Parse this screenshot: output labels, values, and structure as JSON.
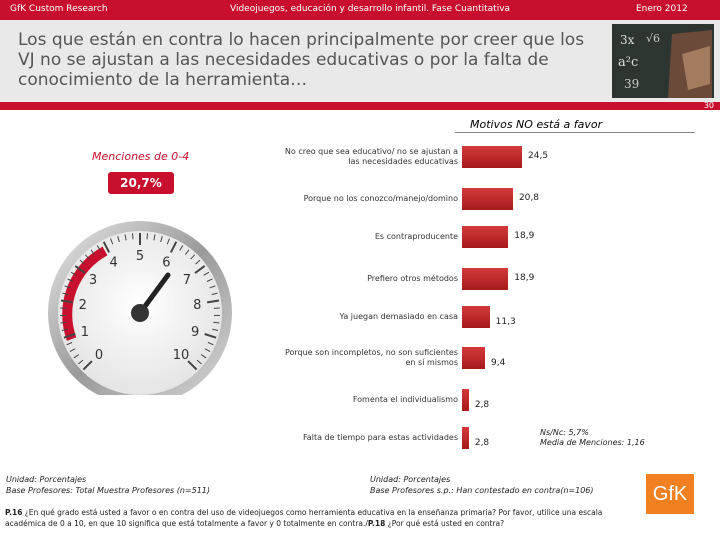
{
  "header": {
    "left": "GfK Custom Research",
    "center": "Videojuegos, educación y desarrollo infantil. Fase Cuantitativa",
    "right": "Enero 2012"
  },
  "title": "Los que están en contra lo hacen principalmente por creer que los VJ no se ajustan a las necesidades educativas o por la falta de conocimiento de la herramienta…",
  "page_number": "30",
  "gauge": {
    "label": "Menciones de 0-4",
    "value_text": "20,7%",
    "ticks": [
      "0",
      "1",
      "2",
      "3",
      "4",
      "5",
      "6",
      "7",
      "8",
      "9",
      "10"
    ]
  },
  "chart_data": {
    "type": "bar",
    "orientation": "horizontal",
    "title": "Motivos NO está a favor",
    "categories": [
      "No creo que sea educativo/ no se ajustan a las necesidades educativas",
      "Porque no los conozco/manejo/domino",
      "Es contraproducente",
      "Prefiero otros métodos",
      "Ya juegan demasiado en casa",
      "Porque son incompletos, no son suficientes en sí mismos",
      "Fomenta el individualismo",
      "Falta de tiempo para estas actividades"
    ],
    "values": [
      24.5,
      20.8,
      18.9,
      18.9,
      11.3,
      9.4,
      2.8,
      2.8
    ],
    "value_labels": [
      "24,5",
      "20,8",
      "18,9",
      "18,9",
      "11,3",
      "9,4",
      "2,8",
      "2,8"
    ],
    "xlim": [
      0,
      30
    ],
    "color": "#b52020"
  },
  "nsnc": [
    "Ns/Nc: 5,7%",
    "Media de Menciones: 1,16"
  ],
  "unidad_left": [
    "Unidad: Porcentajes",
    "Base Profesores: Total Muestra Profesores (n=511)"
  ],
  "unidad_right": [
    "Unidad: Porcentajes",
    "Base Profesores s.p.: Han contestado en contra(n=106)"
  ],
  "logo": "GfK",
  "footnote": {
    "p16_ref": "P.16",
    "p16_text": " ¿En qué grado está usted a favor o en contra del uso de videojuegos como herramienta educativa en la enseñanza primaria? Por favor, utilice una escala académica de 0 a 10, en que 10 significa que está totalmente a favor y 0 totalmente en contra./",
    "p18_ref": "P.18",
    "p18_text": " ¿Por qué está usted en contra?"
  }
}
